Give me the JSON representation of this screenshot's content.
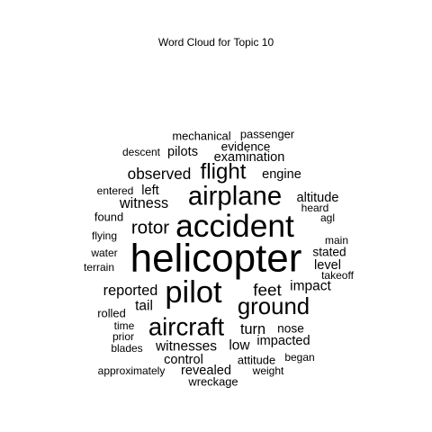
{
  "chart_data": {
    "type": "wordcloud",
    "title": "Word Cloud for Topic 10",
    "text_color": "#000000",
    "background": "#ffffff",
    "words": [
      {
        "text": "helicopter",
        "weight": 48
      },
      {
        "text": "accident",
        "weight": 38
      },
      {
        "text": "pilot",
        "weight": 37
      },
      {
        "text": "airplane",
        "weight": 31
      },
      {
        "text": "aircraft",
        "weight": 29
      },
      {
        "text": "ground",
        "weight": 27
      },
      {
        "text": "flight",
        "weight": 25
      },
      {
        "text": "rotor",
        "weight": 21
      },
      {
        "text": "feet",
        "weight": 19
      },
      {
        "text": "observed",
        "weight": 17
      },
      {
        "text": "witness",
        "weight": 16
      },
      {
        "text": "reported",
        "weight": 16
      },
      {
        "text": "turn",
        "weight": 16
      },
      {
        "text": "impact",
        "weight": 15
      },
      {
        "text": "witnesses",
        "weight": 15
      },
      {
        "text": "low",
        "weight": 15
      },
      {
        "text": "tail",
        "weight": 15
      },
      {
        "text": "examination",
        "weight": 14
      },
      {
        "text": "pilots",
        "weight": 14
      },
      {
        "text": "left",
        "weight": 14
      },
      {
        "text": "engine",
        "weight": 14
      },
      {
        "text": "altitude",
        "weight": 14
      },
      {
        "text": "level",
        "weight": 14
      },
      {
        "text": "control",
        "weight": 14
      },
      {
        "text": "revealed",
        "weight": 14
      },
      {
        "text": "impacted",
        "weight": 14
      },
      {
        "text": "evidence",
        "weight": 13
      },
      {
        "text": "stated",
        "weight": 13
      },
      {
        "text": "nose",
        "weight": 13
      },
      {
        "text": "mechanical",
        "weight": 12
      },
      {
        "text": "passenger",
        "weight": 12
      },
      {
        "text": "found",
        "weight": 12
      },
      {
        "text": "rolled",
        "weight": 12
      },
      {
        "text": "wreckage",
        "weight": 12
      },
      {
        "text": "attitude",
        "weight": 12
      },
      {
        "text": "descent",
        "weight": 11
      },
      {
        "text": "entered",
        "weight": 11
      },
      {
        "text": "heard",
        "weight": 11
      },
      {
        "text": "flying",
        "weight": 11
      },
      {
        "text": "water",
        "weight": 11
      },
      {
        "text": "terrain",
        "weight": 11
      },
      {
        "text": "main",
        "weight": 11
      },
      {
        "text": "takeoff",
        "weight": 11
      },
      {
        "text": "time",
        "weight": 11
      },
      {
        "text": "prior",
        "weight": 11
      },
      {
        "text": "blades",
        "weight": 11
      },
      {
        "text": "approximately",
        "weight": 11
      },
      {
        "text": "weight",
        "weight": 11
      },
      {
        "text": "began",
        "weight": 11
      },
      {
        "text": "agl",
        "weight": 11
      }
    ]
  }
}
